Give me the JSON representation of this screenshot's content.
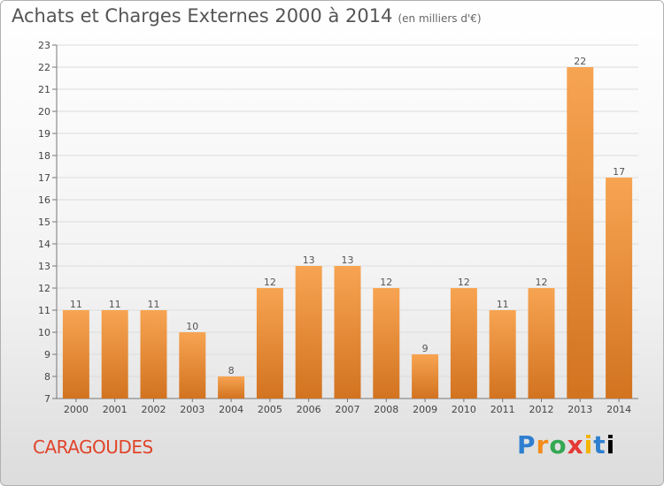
{
  "header": {
    "title": "Achats et Charges Externes 2000 à 2014",
    "subtitle": "(en milliers d'€)"
  },
  "footer": {
    "commune": "CARAGOUDES",
    "logo_letters": [
      "P",
      "r",
      "o",
      "x",
      "i",
      "t",
      "i"
    ]
  },
  "colors": {
    "bar_light": "#f7a452",
    "bar_dark": "#d27320",
    "commune": "#e0442a"
  },
  "chart_data": {
    "type": "bar",
    "title": "Achats et Charges Externes 2000 à 2014",
    "subtitle": "(en milliers d'€)",
    "categories": [
      "2000",
      "2001",
      "2002",
      "2003",
      "2004",
      "2005",
      "2006",
      "2007",
      "2008",
      "2009",
      "2010",
      "2011",
      "2012",
      "2013",
      "2014"
    ],
    "values": [
      11,
      11,
      11,
      10,
      8,
      12,
      13,
      13,
      12,
      9,
      12,
      11,
      12,
      22,
      17
    ],
    "ylim": [
      7,
      23
    ],
    "yticks": [
      7,
      8,
      9,
      10,
      11,
      12,
      13,
      14,
      15,
      16,
      17,
      18,
      19,
      20,
      21,
      22,
      23
    ],
    "grid": true,
    "xlabel": "",
    "ylabel": ""
  }
}
